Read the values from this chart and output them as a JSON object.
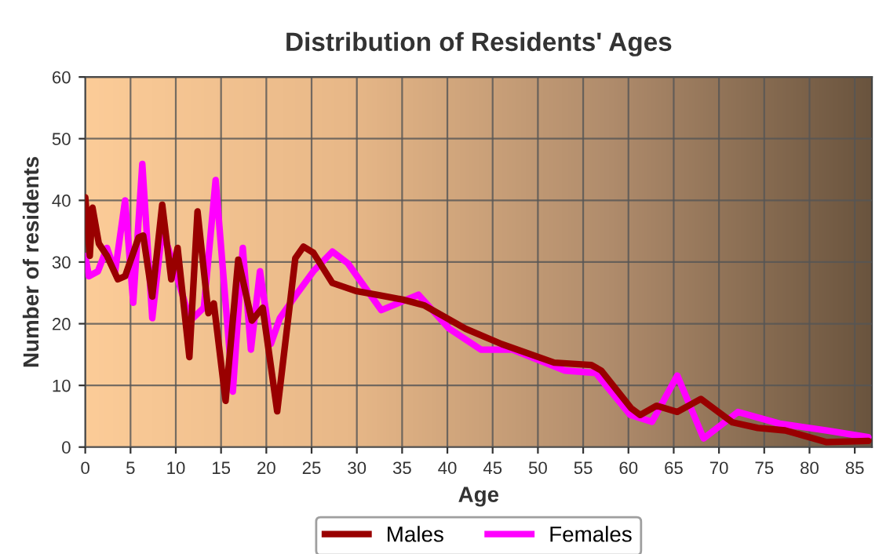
{
  "chart_data": {
    "type": "line",
    "title": "Distribution of Residents' Ages",
    "xlabel": "Age",
    "ylabel": "Number of residents",
    "xlim": [
      0,
      86.9
    ],
    "xticks": [
      0,
      5,
      10,
      15,
      20,
      25,
      30,
      35,
      40,
      45,
      50,
      55,
      60,
      65,
      70,
      75,
      80,
      85
    ],
    "ylim": [
      0,
      60
    ],
    "yticks": [
      0,
      10,
      20,
      30,
      40,
      50,
      60
    ],
    "grid": true,
    "legend": "bottom",
    "marker": "none",
    "line_style": "solid",
    "series": [
      {
        "name": "Males",
        "color": "#990000",
        "x": [
          0,
          0.5,
          0.8,
          1.5,
          2.4,
          3.6,
          4.4,
          5.9,
          6.4,
          7.4,
          8.5,
          9.5,
          10.2,
          11.5,
          12.4,
          13.6,
          14.2,
          15.5,
          16.9,
          18.4,
          19.6,
          21.2,
          23.2,
          24.1,
          25.2,
          27.3,
          29.9,
          32.2,
          35.1,
          37.4,
          42,
          46,
          51.8,
          55.9,
          57,
          60.3,
          61.3,
          63.1,
          65.4,
          68,
          71.5,
          74.3,
          77.3,
          81.9,
          86.5
        ],
        "values": [
          40.5,
          31,
          38.8,
          33,
          31,
          27.2,
          27.7,
          34,
          34.3,
          24.4,
          39.3,
          27.2,
          32.3,
          14.6,
          38.2,
          21.7,
          23.3,
          7.5,
          30.4,
          20.5,
          22.6,
          5.8,
          30.6,
          32.5,
          31.5,
          26.6,
          25.3,
          24.7,
          23.9,
          23,
          19.2,
          16.7,
          13.7,
          13.3,
          12.4,
          6.3,
          5.2,
          6.7,
          5.7,
          7.8,
          4,
          3.1,
          2.7,
          0.8,
          1
        ]
      },
      {
        "name": "Females",
        "color": "#ff00ff",
        "x": [
          0,
          0.4,
          1.4,
          2.4,
          3.3,
          4.4,
          5.3,
          6.3,
          7.4,
          8.5,
          9.6,
          11.6,
          13.1,
          14.4,
          16.3,
          17.4,
          18.3,
          19.3,
          20.5,
          21.5,
          23.5,
          25.2,
          27.3,
          29,
          32.7,
          36.8,
          40.2,
          43.7,
          47.2,
          53,
          56.4,
          60.2,
          62.6,
          65.4,
          68.3,
          72.1,
          76.7,
          81.9,
          86.5
        ],
        "values": [
          31,
          27.7,
          28.5,
          32.3,
          28.5,
          40,
          23.4,
          45.9,
          20.9,
          35.3,
          30.2,
          20.5,
          22.6,
          43.3,
          9,
          32.3,
          15.8,
          28.5,
          16.7,
          20.9,
          25.1,
          28.5,
          31.7,
          29.8,
          22.2,
          24.7,
          19.2,
          15.8,
          15.8,
          12.4,
          12,
          5.2,
          4.1,
          11.6,
          1.4,
          5.7,
          3.8,
          2.7,
          1.6
        ]
      }
    ]
  }
}
